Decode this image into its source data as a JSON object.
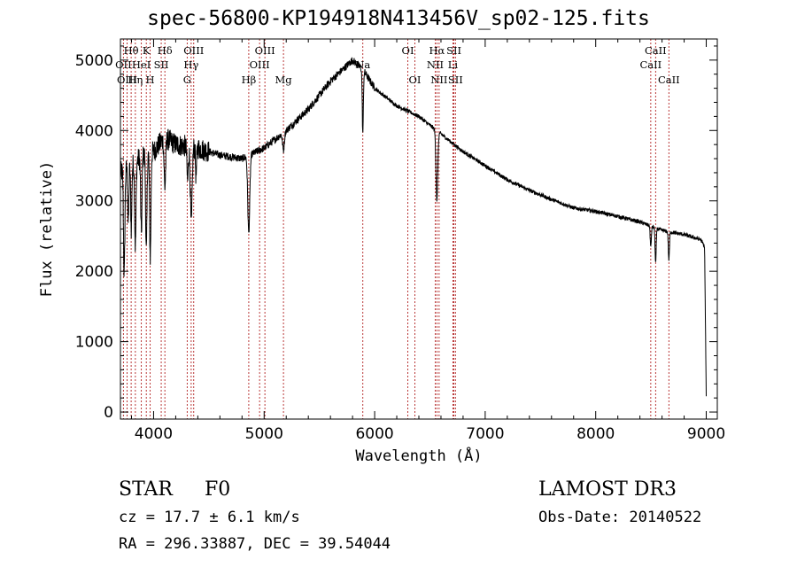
{
  "header": {
    "title": "spec-56800-KP194918N413456V_sp02-125.fits"
  },
  "object": {
    "class": "STAR",
    "subclass": "F0",
    "survey": "LAMOST DR3",
    "cz": "cz = 17.7 ± 6.1 km/s",
    "obs_date": "Obs-Date: 20140522",
    "radec": "RA = 296.33887, DEC =  39.54044"
  },
  "colors": {
    "spectrum": "#000000",
    "line_markers": "#b22222",
    "axes": "#000000"
  },
  "chart_data": {
    "type": "line",
    "title": "spec-56800-KP194918N413456V_sp02-125.fits",
    "xlabel": "Wavelength (Å)",
    "ylabel": "Flux (relative)",
    "xlim": [
      3700,
      9100
    ],
    "ylim": [
      -100,
      5300
    ],
    "xticks": [
      4000,
      5000,
      6000,
      7000,
      8000,
      9000
    ],
    "yticks": [
      0,
      1000,
      2000,
      3000,
      4000,
      5000
    ],
    "grid": false,
    "continuum": [
      [
        3700,
        3400
      ],
      [
        3800,
        3500
      ],
      [
        3900,
        3650
      ],
      [
        4000,
        3700
      ],
      [
        4100,
        3900
      ],
      [
        4200,
        3800
      ],
      [
        4400,
        3750
      ],
      [
        4600,
        3650
      ],
      [
        4800,
        3600
      ],
      [
        5000,
        3750
      ],
      [
        5200,
        4000
      ],
      [
        5400,
        4300
      ],
      [
        5600,
        4700
      ],
      [
        5800,
        5000
      ],
      [
        5900,
        4850
      ],
      [
        6000,
        4600
      ],
      [
        6200,
        4350
      ],
      [
        6400,
        4200
      ],
      [
        6600,
        3950
      ],
      [
        6800,
        3700
      ],
      [
        7000,
        3500
      ],
      [
        7200,
        3300
      ],
      [
        7400,
        3150
      ],
      [
        7600,
        3020
      ],
      [
        7800,
        2900
      ],
      [
        8000,
        2850
      ],
      [
        8200,
        2780
      ],
      [
        8400,
        2700
      ],
      [
        8600,
        2580
      ],
      [
        8800,
        2520
      ],
      [
        8950,
        2450
      ],
      [
        9000,
        2300
      ]
    ],
    "absorption": [
      {
        "center": 3734,
        "depth": 1500,
        "width": 6
      },
      {
        "center": 3771,
        "depth": 800,
        "width": 5
      },
      {
        "center": 3798,
        "depth": 900,
        "width": 5
      },
      {
        "center": 3835,
        "depth": 1200,
        "width": 6
      },
      {
        "center": 3889,
        "depth": 1100,
        "width": 6
      },
      {
        "center": 3934,
        "depth": 1400,
        "width": 6
      },
      {
        "center": 3970,
        "depth": 1500,
        "width": 6
      },
      {
        "center": 4102,
        "depth": 700,
        "width": 7
      },
      {
        "center": 4308,
        "depth": 500,
        "width": 6
      },
      {
        "center": 4341,
        "depth": 1100,
        "width": 8
      },
      {
        "center": 4384,
        "depth": 400,
        "width": 5
      },
      {
        "center": 4861,
        "depth": 1100,
        "width": 9
      },
      {
        "center": 5175,
        "depth": 250,
        "width": 8
      },
      {
        "center": 5893,
        "depth": 900,
        "width": 5
      },
      {
        "center": 6563,
        "depth": 1000,
        "width": 8
      },
      {
        "center": 8498,
        "depth": 300,
        "width": 5
      },
      {
        "center": 8542,
        "depth": 500,
        "width": 5
      },
      {
        "center": 8662,
        "depth": 400,
        "width": 5
      }
    ],
    "lines": [
      {
        "label": "Hθ",
        "wave": 3797,
        "row": 1
      },
      {
        "label": "OII",
        "wave": 3727,
        "row": 2
      },
      {
        "label": "OIII",
        "wave": 3760,
        "row": 3
      },
      {
        "label": "Hη",
        "wave": 3835,
        "row": 3
      },
      {
        "label": "K",
        "wave": 3934,
        "row": 1
      },
      {
        "label": "HeI",
        "wave": 3889,
        "row": 2
      },
      {
        "label": "H",
        "wave": 3969,
        "row": 3
      },
      {
        "label": "Hδ",
        "wave": 4102,
        "row": 1
      },
      {
        "label": "SII",
        "wave": 4069,
        "row": 2
      },
      {
        "label": "OIII",
        "wave": 4363,
        "row": 1
      },
      {
        "label": "Hγ",
        "wave": 4340,
        "row": 2
      },
      {
        "label": "G",
        "wave": 4304,
        "row": 3
      },
      {
        "label": "Hβ",
        "wave": 4861,
        "row": 3
      },
      {
        "label": "OIII",
        "wave": 5007,
        "row": 1
      },
      {
        "label": "OIII",
        "wave": 4959,
        "row": 2
      },
      {
        "label": "Mg",
        "wave": 5175,
        "row": 3
      },
      {
        "label": "Na",
        "wave": 5893,
        "row": 2
      },
      {
        "label": "OI",
        "wave": 6300,
        "row": 1
      },
      {
        "label": "OI",
        "wave": 6364,
        "row": 3
      },
      {
        "label": "Hα",
        "wave": 6563,
        "row": 1
      },
      {
        "label": "NII",
        "wave": 6548,
        "row": 2
      },
      {
        "label": "NII",
        "wave": 6583,
        "row": 3
      },
      {
        "label": "SII",
        "wave": 6717,
        "row": 1
      },
      {
        "label": "Li",
        "wave": 6708,
        "row": 2
      },
      {
        "label": "SII",
        "wave": 6731,
        "row": 3
      },
      {
        "label": "CaII",
        "wave": 8542,
        "row": 1
      },
      {
        "label": "CaII",
        "wave": 8498,
        "row": 2
      },
      {
        "label": "CaII",
        "wave": 8662,
        "row": 3
      }
    ]
  }
}
